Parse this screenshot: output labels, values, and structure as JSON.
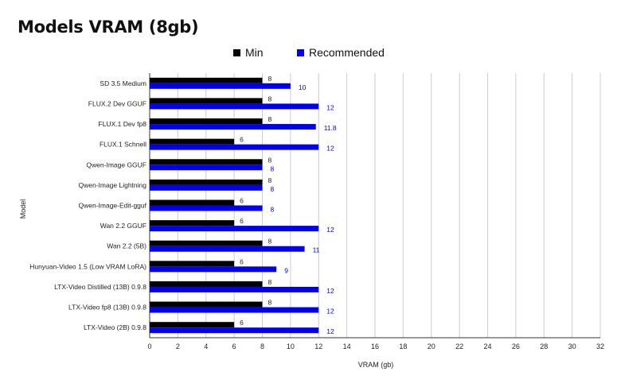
{
  "chart_data": {
    "type": "bar",
    "orientation": "horizontal",
    "title": "Models VRAM (8gb)",
    "xlabel": "VRAM (gb)",
    "ylabel": "Model",
    "xlim": [
      0,
      32
    ],
    "xticks": [
      0,
      2,
      4,
      6,
      8,
      10,
      12,
      14,
      16,
      18,
      20,
      22,
      24,
      26,
      28,
      30,
      32
    ],
    "grid": true,
    "legend_position": "top",
    "categories": [
      "SD 3.5 Medium",
      "FLUX.2 Dev GGUF",
      "FLUX.1 Dev fp8",
      "FLUX.1 Schnell",
      "Qwen-Image GGUF",
      "Qwen-Image Lightning",
      "Qwen-Image-Edit-gguf",
      "Wan 2.2 GGUF",
      "Wan 2.2 (5B)",
      "Hunyuan-Video 1.5 (Low VRAM LoRA)",
      "LTX-Video Distilled (13B) 0.9.8",
      "LTX-Video fp8 (13B) 0.9.8",
      "LTX-Video (2B) 0.9.8"
    ],
    "series": [
      {
        "name": "Min",
        "color": "#000000",
        "label_color": "#222222",
        "values": [
          8,
          8,
          8,
          6,
          8,
          8,
          6,
          6,
          8,
          6,
          8,
          8,
          6
        ]
      },
      {
        "name": "Recommended",
        "color": "#0000ee",
        "label_color": "#0000ee",
        "values": [
          10,
          12,
          11.8,
          12,
          8,
          8,
          8,
          12,
          11,
          9,
          12,
          12,
          12
        ]
      }
    ]
  }
}
